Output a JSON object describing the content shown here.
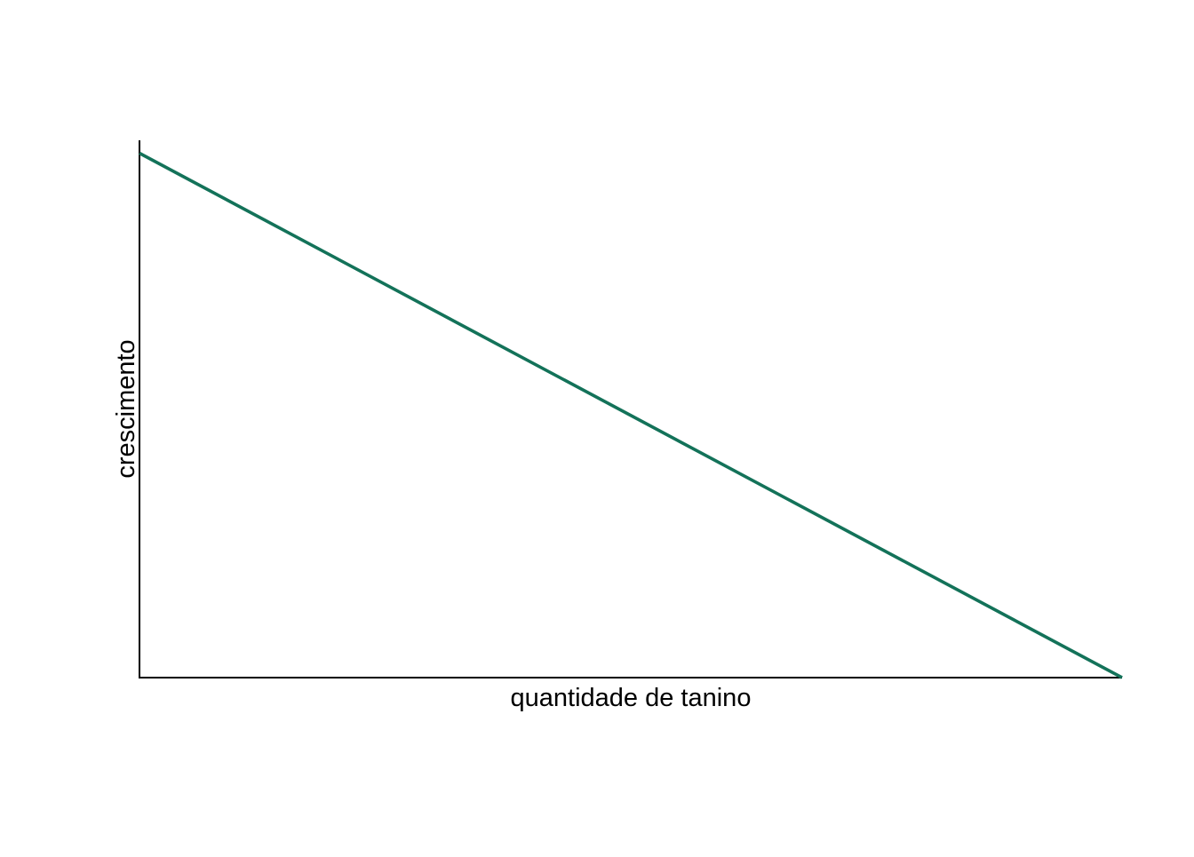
{
  "chart_data": {
    "type": "line",
    "xlabel": "quantidade de tanino",
    "ylabel": "crescimento",
    "xlim": [
      0,
      1
    ],
    "ylim": [
      0,
      1
    ],
    "grid": false,
    "legend": "none",
    "series": [
      {
        "x": [
          0,
          1
        ],
        "values": [
          0.976,
          0.0
        ],
        "color": "#137259"
      }
    ]
  }
}
